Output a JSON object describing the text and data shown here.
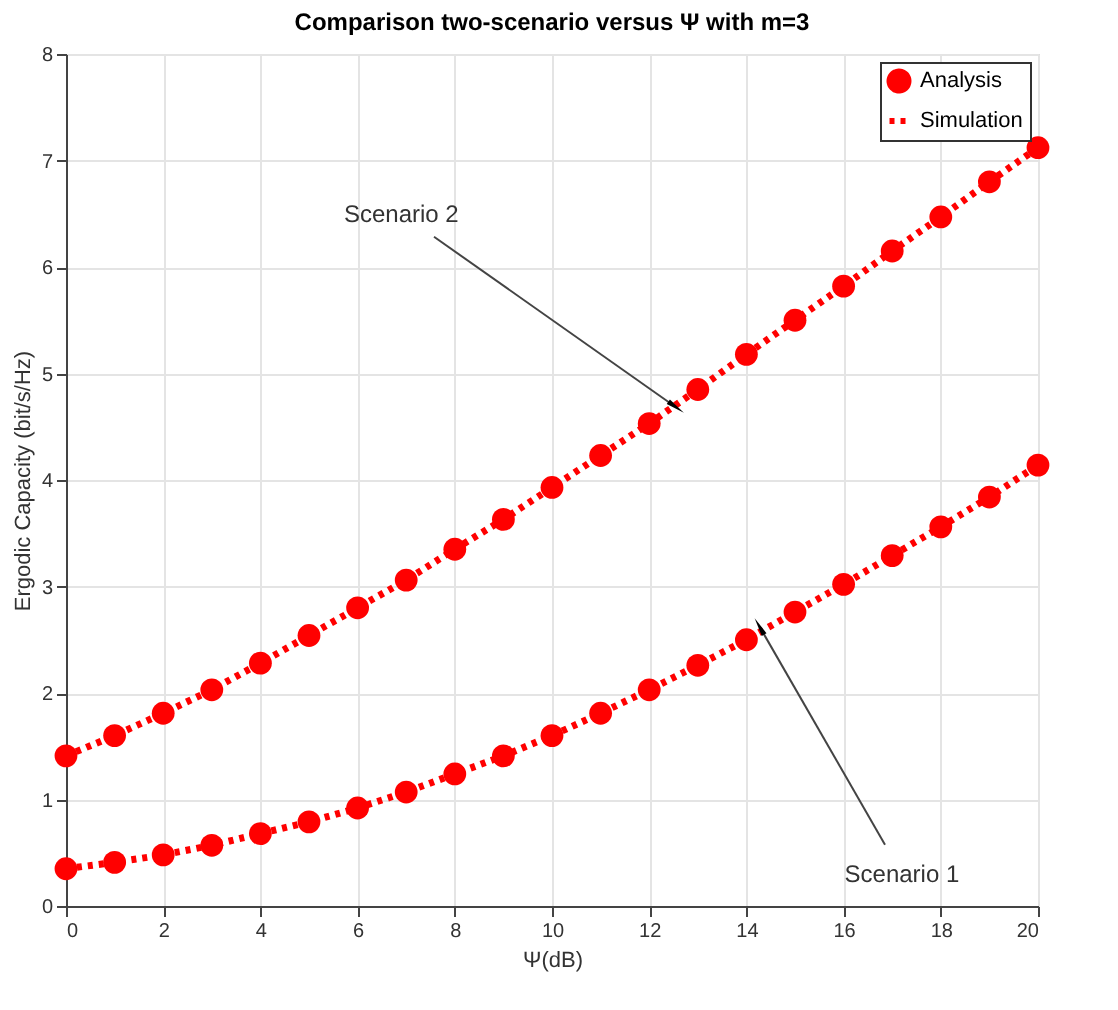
{
  "chart_data": {
    "type": "line",
    "title": "Comparison two-scenario versus Ψ with m=3",
    "xlabel": "Ψ(dB)",
    "ylabel": "Ergodic Capacity (bit/s/Hz)",
    "x": [
      0,
      1,
      2,
      3,
      4,
      5,
      6,
      7,
      8,
      9,
      10,
      11,
      12,
      13,
      14,
      15,
      16,
      17,
      18,
      19,
      20
    ],
    "series": [
      {
        "name": "Analysis",
        "type": "scatter",
        "marker": "circle",
        "color": "#ff0000",
        "values": [
          1.41,
          1.6,
          1.81,
          2.03,
          2.28,
          2.54,
          2.8,
          3.06,
          3.35,
          3.63,
          3.93,
          4.23,
          4.53,
          4.85,
          5.18,
          5.5,
          5.82,
          6.15,
          6.47,
          6.8,
          7.12
        ]
      },
      {
        "name": "Simulation",
        "type": "line",
        "line_style": "dotted",
        "color": "#ff0000",
        "values": [
          1.41,
          1.6,
          1.81,
          2.03,
          2.28,
          2.54,
          2.8,
          3.06,
          3.35,
          3.63,
          3.93,
          4.23,
          4.53,
          4.85,
          5.18,
          5.5,
          5.82,
          6.15,
          6.47,
          6.8,
          7.12
        ]
      },
      {
        "type": "scatter",
        "marker": "circle",
        "color": "#ff0000",
        "values": [
          0.35,
          0.41,
          0.48,
          0.57,
          0.68,
          0.79,
          0.92,
          1.07,
          1.24,
          1.41,
          1.6,
          1.81,
          2.03,
          2.26,
          2.5,
          2.76,
          3.02,
          3.29,
          3.56,
          3.84,
          4.14
        ]
      },
      {
        "type": "line",
        "line_style": "dotted",
        "color": "#ff0000",
        "values": [
          0.35,
          0.41,
          0.48,
          0.57,
          0.68,
          0.79,
          0.92,
          1.07,
          1.24,
          1.41,
          1.6,
          1.81,
          2.03,
          2.26,
          2.5,
          2.76,
          3.02,
          3.29,
          3.56,
          3.84,
          4.14
        ]
      }
    ],
    "annotations": [
      {
        "text": "Scenario 2",
        "x": 12.5,
        "y": 4.7
      },
      {
        "text": "Scenario 1",
        "x": 14.3,
        "y": 2.6
      }
    ],
    "xlim": [
      0,
      20
    ],
    "xticks": [
      0,
      2,
      4,
      6,
      8,
      10,
      12,
      14,
      16,
      18,
      20
    ],
    "ylim": [
      0,
      8
    ],
    "yticks": [
      0,
      1,
      2,
      3,
      4,
      5,
      6,
      7,
      8
    ],
    "grid": true,
    "legend": "top right"
  }
}
